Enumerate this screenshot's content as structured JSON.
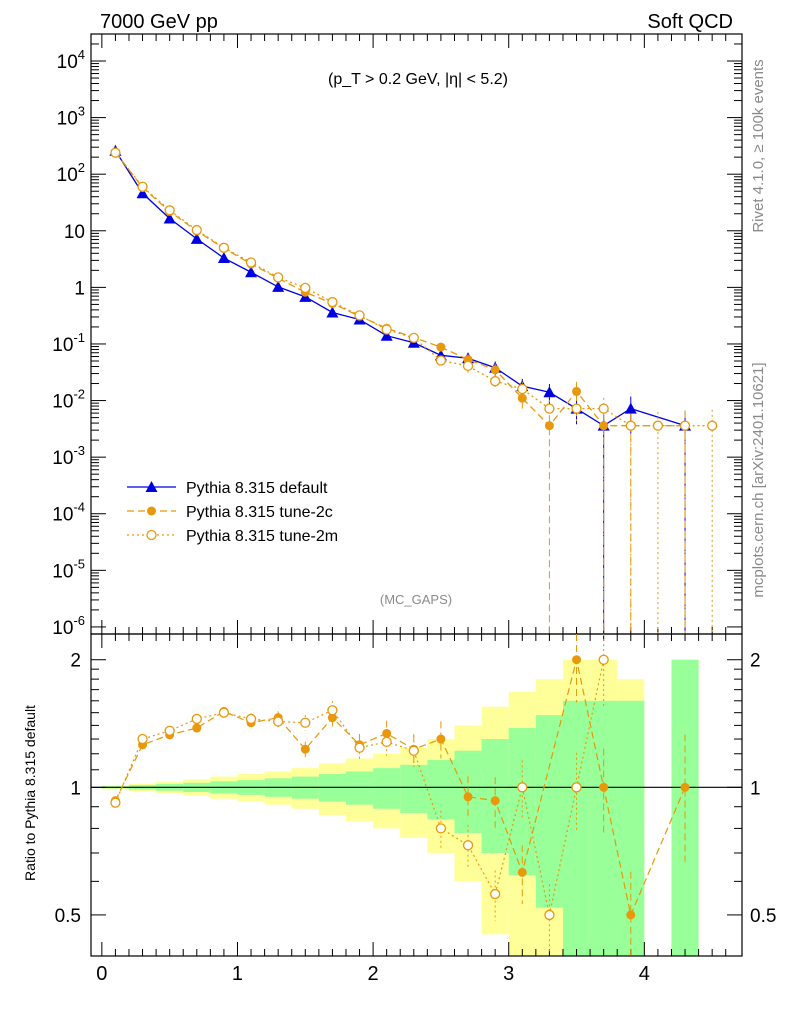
{
  "header": {
    "left_title": "7000 GeV pp",
    "right_title": "Soft QCD",
    "cut_label": "(p_T > 0.2 GeV, |η| < 5.2)",
    "analysis_tag": "(MC_GAPS)"
  },
  "side_text": {
    "rivet": "Rivet 4.1.0, ≥ 100k events",
    "mcplots": "mcplots.cern.ch [arXiv:2401.10621]"
  },
  "chart_data": {
    "type": "line",
    "title": "7000 GeV pp  Soft QCD",
    "xlabel": "",
    "ylabel": "",
    "xlim": [
      -0.08,
      4.72
    ],
    "ylim": [
      7.5e-07,
      30000.0
    ],
    "yscale": "log",
    "x_ticks": [
      "0",
      "1",
      "2",
      "3",
      "4"
    ],
    "y_ticks": [
      "10^-6",
      "10^-5",
      "10^-4",
      "10^-3",
      "10^-2",
      "10^-1",
      "1",
      "10",
      "10^2",
      "10^3",
      "10^4"
    ],
    "legend": [
      {
        "name": "Pythia 8.315 default",
        "color": "#0000e0",
        "style": "solid",
        "marker": "triangle"
      },
      {
        "name": "Pythia 8.315 tune-2c",
        "color": "#e8980a",
        "style": "dashed",
        "marker": "filled-circle"
      },
      {
        "name": "Pythia 8.315 tune-2m",
        "color": "#e8980a",
        "style": "dotted",
        "marker": "open-circle"
      }
    ],
    "series": [
      {
        "name": "Pythia 8.315 default",
        "x": [
          0.1,
          0.3,
          0.5,
          0.7,
          0.9,
          1.1,
          1.3,
          1.5,
          1.7,
          1.9,
          2.1,
          2.3,
          2.5,
          2.7,
          2.9,
          3.1,
          3.3,
          3.5,
          3.7,
          3.9,
          4.3
        ],
        "values": [
          260,
          46,
          16.5,
          7.2,
          3.3,
          1.85,
          1.02,
          0.68,
          0.36,
          0.27,
          0.14,
          0.105,
          0.063,
          0.056,
          0.038,
          0.018,
          0.014,
          0.0072,
          0.0036,
          0.0072,
          0.0036
        ]
      },
      {
        "name": "Pythia 8.315 tune-2c",
        "x": [
          0.1,
          0.3,
          0.5,
          0.7,
          0.9,
          1.1,
          1.3,
          1.5,
          1.7,
          1.9,
          2.1,
          2.3,
          2.5,
          2.7,
          2.9,
          3.1,
          3.3,
          3.5,
          3.7,
          3.9,
          4.3
        ],
        "values": [
          245,
          58,
          22,
          9.9,
          4.9,
          2.6,
          1.45,
          0.82,
          0.52,
          0.31,
          0.19,
          0.13,
          0.088,
          0.053,
          0.035,
          0.011,
          0.0036,
          0.0145,
          0.0036,
          0.0036,
          0.0036
        ]
      },
      {
        "name": "Pythia 8.315 tune-2m",
        "x": [
          0.1,
          0.3,
          0.5,
          0.7,
          0.9,
          1.1,
          1.3,
          1.5,
          1.7,
          1.9,
          2.1,
          2.3,
          2.5,
          2.7,
          2.9,
          3.1,
          3.3,
          3.5,
          3.7,
          3.9,
          4.1,
          4.3,
          4.5
        ],
        "values": [
          240,
          60,
          23,
          10.3,
          5.0,
          2.75,
          1.5,
          0.98,
          0.55,
          0.32,
          0.18,
          0.128,
          0.051,
          0.041,
          0.022,
          0.016,
          0.0072,
          0.0072,
          0.0072,
          0.0036,
          0.0036,
          0.0036,
          0.0036
        ]
      }
    ],
    "ratio": {
      "ylabel": "Ratio to Pythia 8.315 default",
      "ylim": [
        0.4,
        2.3
      ],
      "yscale": "log",
      "y_ticks": [
        "0.5",
        "1",
        "2"
      ],
      "reference_line": 1,
      "tune2c": {
        "x": [
          0.1,
          0.3,
          0.5,
          0.7,
          0.9,
          1.1,
          1.3,
          1.5,
          1.7,
          1.9,
          2.1,
          2.3,
          2.5,
          2.7,
          2.9,
          3.1,
          3.5,
          3.7,
          3.9,
          4.3
        ],
        "values": [
          0.93,
          1.26,
          1.33,
          1.38,
          1.51,
          1.42,
          1.46,
          1.23,
          1.46,
          1.26,
          1.34,
          1.23,
          1.3,
          0.95,
          0.93,
          0.63,
          2.0,
          1.0,
          0.5,
          1.0
        ]
      },
      "tune2m": {
        "x": [
          0.1,
          0.3,
          0.5,
          0.7,
          0.9,
          1.1,
          1.3,
          1.5,
          1.7,
          1.9,
          2.1,
          2.3,
          2.5,
          2.7,
          2.9,
          3.1,
          3.3,
          3.5,
          3.7
        ],
        "values": [
          0.92,
          1.3,
          1.36,
          1.45,
          1.5,
          1.45,
          1.43,
          1.42,
          1.52,
          1.24,
          1.28,
          1.22,
          0.8,
          0.73,
          0.56,
          1.0,
          0.5,
          1.0,
          2.0
        ]
      },
      "stat_bands": {
        "x_edges": [
          0.0,
          0.2,
          0.4,
          0.6,
          0.8,
          1.0,
          1.2,
          1.4,
          1.6,
          1.8,
          2.0,
          2.2,
          2.4,
          2.6,
          2.8,
          3.0,
          3.2,
          3.4,
          3.6,
          3.8,
          4.0,
          4.2,
          4.4
        ],
        "green_half": [
          0.006,
          0.012,
          0.018,
          0.025,
          0.033,
          0.04,
          0.05,
          0.06,
          0.075,
          0.09,
          0.11,
          0.13,
          0.16,
          0.22,
          0.3,
          0.38,
          0.48,
          0.6,
          0.6,
          0.6,
          null,
          1.0
        ],
        "yellow_half": [
          0.01,
          0.02,
          0.03,
          0.045,
          0.06,
          0.075,
          0.09,
          0.11,
          0.14,
          0.17,
          0.2,
          0.24,
          0.3,
          0.4,
          0.55,
          0.68,
          0.8,
          1.0,
          1.0,
          0.8,
          null,
          1.0
        ]
      }
    }
  }
}
